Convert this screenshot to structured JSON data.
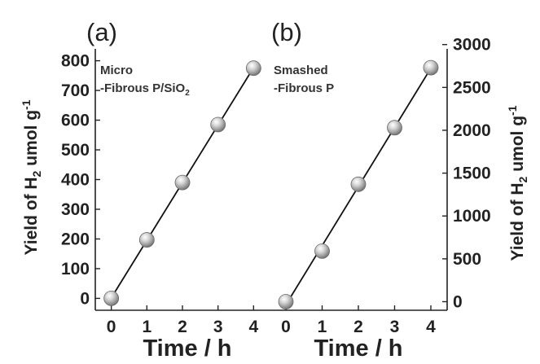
{
  "chart_data": [
    {
      "type": "scatter",
      "panel_label": "(a)",
      "annotation_lines": [
        "Micro",
        "-Fibrous P/SiO",
        "2"
      ],
      "xlabel": "Time / h",
      "ylabel": [
        "Yield of H",
        "2",
        " umol g",
        "-1"
      ],
      "x": [
        0,
        1,
        2,
        3,
        4
      ],
      "y": [
        0,
        197,
        390,
        585,
        775
      ],
      "fit_line": true,
      "xlim": [
        -0.45,
        4.45
      ],
      "ylim": [
        -40,
        840
      ],
      "xticks": [
        0,
        1,
        2,
        3,
        4
      ],
      "yticks": [
        0,
        100,
        200,
        300,
        400,
        500,
        600,
        700,
        800
      ],
      "y_axis_side": "left",
      "grid": false,
      "marker_color": "#a8a8a8"
    },
    {
      "type": "scatter",
      "panel_label": "(b)",
      "annotation_lines": [
        "Smashed",
        "-Fibrous P"
      ],
      "xlabel": "Time / h",
      "ylabel": [
        "Yield of H",
        "2",
        " umol g",
        "-1"
      ],
      "x": [
        0,
        1,
        2,
        3,
        4
      ],
      "y": [
        0,
        590,
        1370,
        2030,
        2730
      ],
      "fit_line": true,
      "xlim": [
        -0.45,
        4.45
      ],
      "ylim": [
        -100,
        2950
      ],
      "xticks": [
        0,
        1,
        2,
        3,
        4
      ],
      "yticks": [
        0,
        500,
        1000,
        1500,
        2000,
        2500,
        3000
      ],
      "y_axis_side": "right",
      "grid": false,
      "marker_color": "#a8a8a8"
    }
  ]
}
